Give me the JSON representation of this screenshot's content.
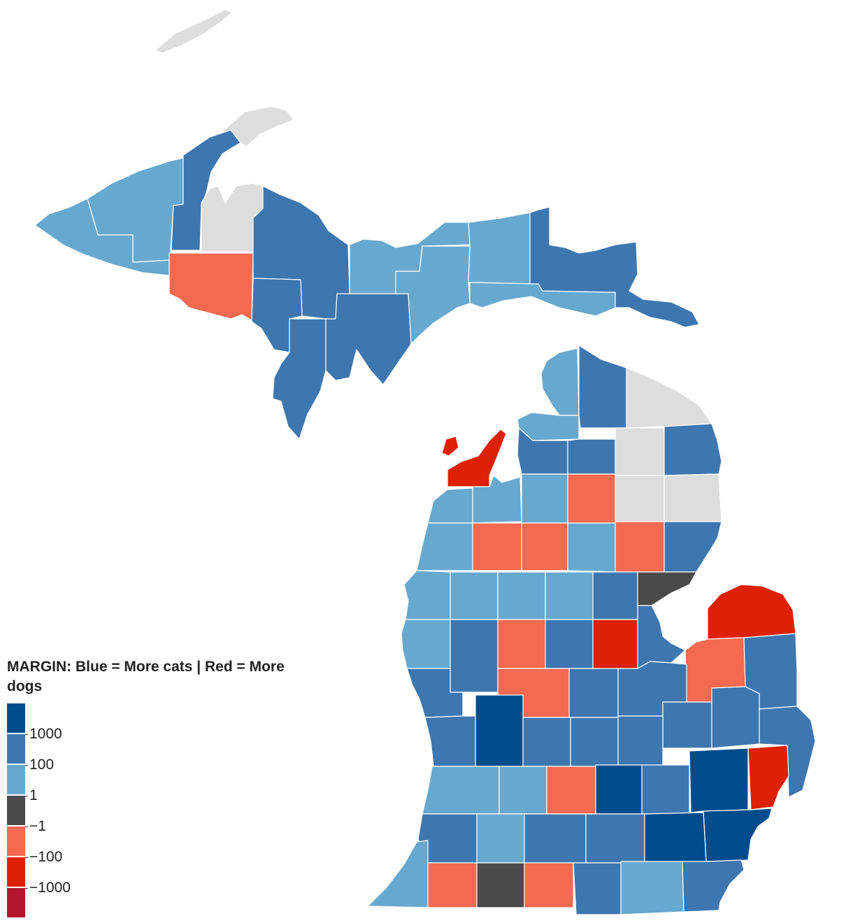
{
  "legend": {
    "title": "MARGIN: Blue = More cats | Red = More dogs",
    "bins": [
      {
        "color": "#004c8c",
        "label": "1000"
      },
      {
        "color": "#3e77af",
        "label": "100"
      },
      {
        "color": "#67a8cf",
        "label": "1"
      },
      {
        "color": "#4a4a4a",
        "label": "−1"
      },
      {
        "color": "#f46a50",
        "label": "−100"
      },
      {
        "color": "#de2104",
        "label": "−1000"
      },
      {
        "color": "#b3172e",
        "label": ""
      }
    ]
  },
  "colors": {
    "cats_1000": "#004c8c",
    "cats_100": "#3e77af",
    "cats_1": "#67a8cf",
    "tie": "#4a4a4a",
    "dogs_100": "#f46a50",
    "dogs_1000": "#de2104",
    "dogs_max": "#b3172e",
    "no_data": "#dddddd"
  }
}
